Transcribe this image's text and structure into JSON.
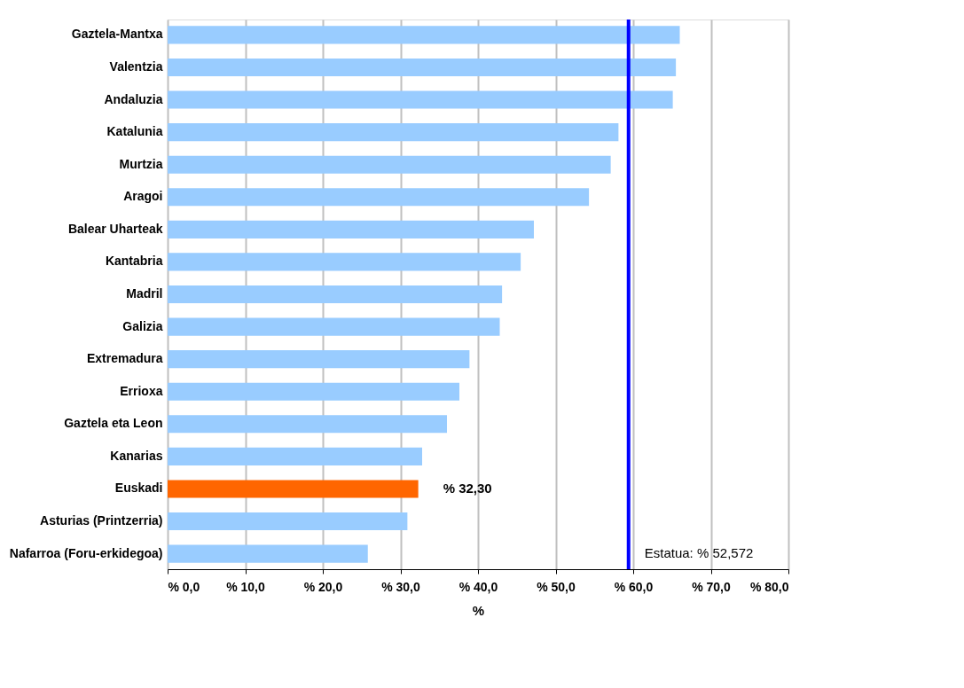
{
  "chart_data": {
    "type": "bar",
    "orientation": "horizontal",
    "xlabel": "%",
    "categories": [
      "Gaztela-Mantxa",
      "Valentzia",
      "Andaluzia",
      "Katalunia",
      "Murtzia",
      "Aragoi",
      "Balear Uharteak",
      "Kantabria",
      "Madril",
      "Galizia",
      "Extremadura",
      "Errioxa",
      "Gaztela eta Leon",
      "Kanarias",
      "Euskadi",
      "Asturias (Printzerria)",
      "Nafarroa (Foru-erkidegoa)"
    ],
    "values": [
      66.0,
      65.5,
      65.1,
      58.1,
      57.1,
      54.3,
      47.2,
      45.5,
      43.1,
      42.8,
      38.9,
      37.6,
      36.0,
      32.8,
      32.3,
      30.9,
      25.8
    ],
    "colors": [
      "#99ccff",
      "#99ccff",
      "#99ccff",
      "#99ccff",
      "#99ccff",
      "#99ccff",
      "#99ccff",
      "#99ccff",
      "#99ccff",
      "#99ccff",
      "#99ccff",
      "#99ccff",
      "#99ccff",
      "#99ccff",
      "#ff6600",
      "#99ccff",
      "#99ccff"
    ],
    "value_labels": [
      null,
      null,
      null,
      null,
      null,
      null,
      null,
      null,
      null,
      null,
      null,
      null,
      null,
      null,
      "% 32,30",
      null,
      null
    ],
    "xlim": [
      0,
      80
    ],
    "xticks": [
      {
        "value": 0,
        "label": "% 0,0"
      },
      {
        "value": 10,
        "label": "% 10,0"
      },
      {
        "value": 20,
        "label": "% 20,0"
      },
      {
        "value": 30,
        "label": "% 30,0"
      },
      {
        "value": 40,
        "label": "% 40,0"
      },
      {
        "value": 50,
        "label": "% 50,0"
      },
      {
        "value": 60,
        "label": "% 60,0"
      },
      {
        "value": 70,
        "label": "% 70,0"
      },
      {
        "value": 80,
        "label": "% 80,0"
      }
    ],
    "ref_lines": [
      {
        "axis": "x",
        "value": 59.4,
        "label": "Estatua: % 52,572",
        "color": "#0000ff"
      }
    ],
    "grid": "x"
  }
}
